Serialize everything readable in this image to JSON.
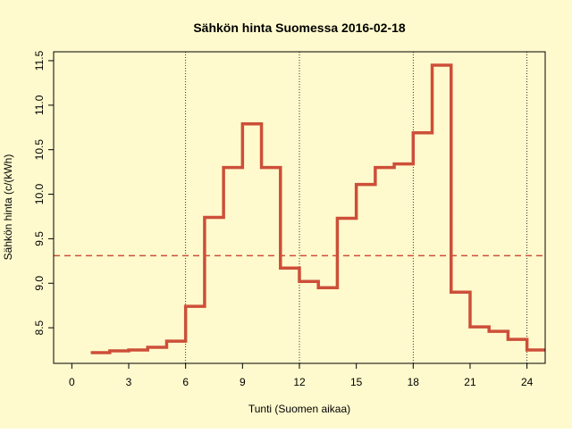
{
  "chart_data": {
    "type": "step",
    "title": "Sähkön hinta Suomessa 2016-02-18",
    "x_label": "Tunti (Suomen aikaa)",
    "y_label": "Sähkön hinta (c/(kWh)",
    "x": [
      1,
      2,
      3,
      4,
      5,
      6,
      7,
      8,
      9,
      10,
      11,
      12,
      13,
      14,
      15,
      16,
      17,
      18,
      19,
      20,
      21,
      22,
      23,
      24,
      25
    ],
    "series": [
      {
        "color": "#cd4f39",
        "values": [
          8.22,
          8.24,
          8.25,
          8.28,
          8.35,
          8.74,
          9.74,
          10.3,
          10.79,
          10.3,
          9.17,
          9.02,
          8.95,
          9.73,
          10.11,
          10.3,
          10.34,
          10.69,
          11.45,
          8.9,
          8.51,
          8.46,
          8.37,
          8.25,
          8.25
        ]
      }
    ],
    "hline": {
      "value": 9.31,
      "color": "#cd4f39"
    },
    "vlines": [
      6,
      12,
      18,
      24
    ],
    "xlim": [
      -0.96,
      24.96
    ],
    "ylim": [
      8.1,
      11.6
    ],
    "xticks": [
      0,
      3,
      6,
      9,
      12,
      15,
      18,
      21,
      24
    ],
    "yticks": [
      8.5,
      9.0,
      9.5,
      10.0,
      10.5,
      11.0,
      11.5
    ],
    "background": "#fffacd"
  }
}
